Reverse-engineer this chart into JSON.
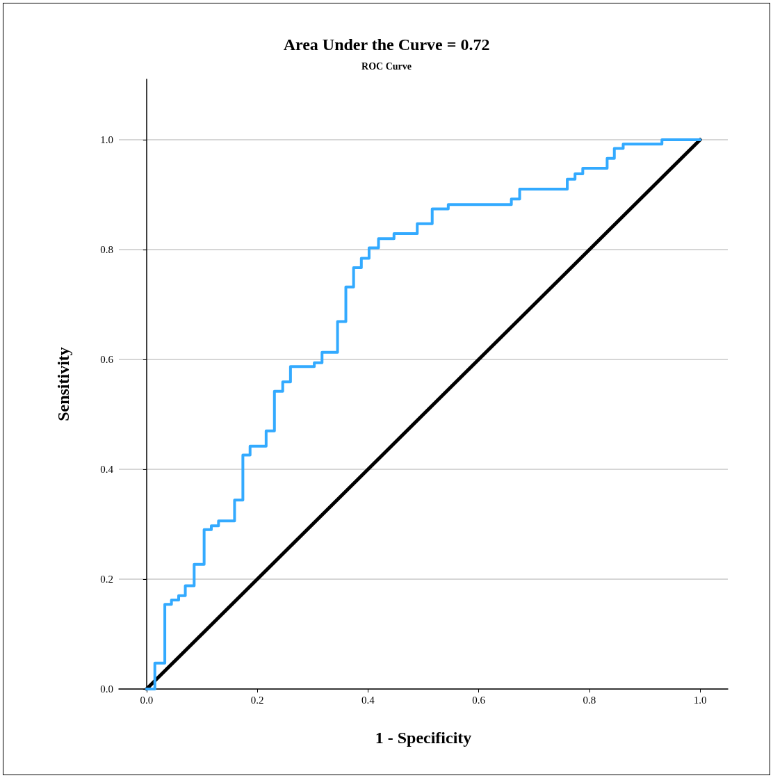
{
  "chart_data": {
    "type": "line",
    "title": "Area Under the Curve = 0.72",
    "subtitle": "ROC Curve",
    "xlabel": "1 - Specificity",
    "ylabel": "Sensitivity",
    "series": [
      {
        "type": "step",
        "color": "#33aaff",
        "x": [
          0,
          0.015,
          0.033,
          0.045,
          0.058,
          0.07,
          0.086,
          0.104,
          0.117,
          0.13,
          0.159,
          0.174,
          0.187,
          0.216,
          0.231,
          0.246,
          0.26,
          0.303,
          0.317,
          0.345,
          0.36,
          0.374,
          0.388,
          0.402,
          0.419,
          0.447,
          0.489,
          0.516,
          0.545,
          0.659,
          0.674,
          0.76,
          0.774,
          0.788,
          0.832,
          0.845,
          0.861,
          0.931,
          1.0
        ],
        "values": [
          0,
          0.047,
          0.154,
          0.162,
          0.17,
          0.188,
          0.227,
          0.29,
          0.297,
          0.306,
          0.344,
          0.426,
          0.442,
          0.47,
          0.542,
          0.559,
          0.587,
          0.594,
          0.613,
          0.669,
          0.732,
          0.767,
          0.784,
          0.803,
          0.82,
          0.829,
          0.847,
          0.874,
          0.882,
          0.892,
          0.91,
          0.928,
          0.938,
          0.948,
          0.966,
          0.984,
          0.992,
          1.0,
          1.0
        ]
      },
      {
        "color": "#000000",
        "x": [
          0,
          1
        ],
        "values": [
          0,
          1
        ]
      }
    ],
    "xlim": [
      -0.05,
      1.05
    ],
    "ylim": [
      0,
      1.11
    ],
    "xticks": [
      {
        "value": 0,
        "label": "0.0"
      },
      0.2,
      0.4,
      0.6,
      0.8,
      {
        "value": 1,
        "label": "1.0"
      }
    ],
    "yticks": [
      {
        "value": 0,
        "label": "0.0"
      },
      0.2,
      0.4,
      0.6,
      0.8,
      {
        "value": 1,
        "label": "1.0"
      }
    ],
    "grid": "y",
    "marker": "none",
    "line_style": "solid"
  }
}
